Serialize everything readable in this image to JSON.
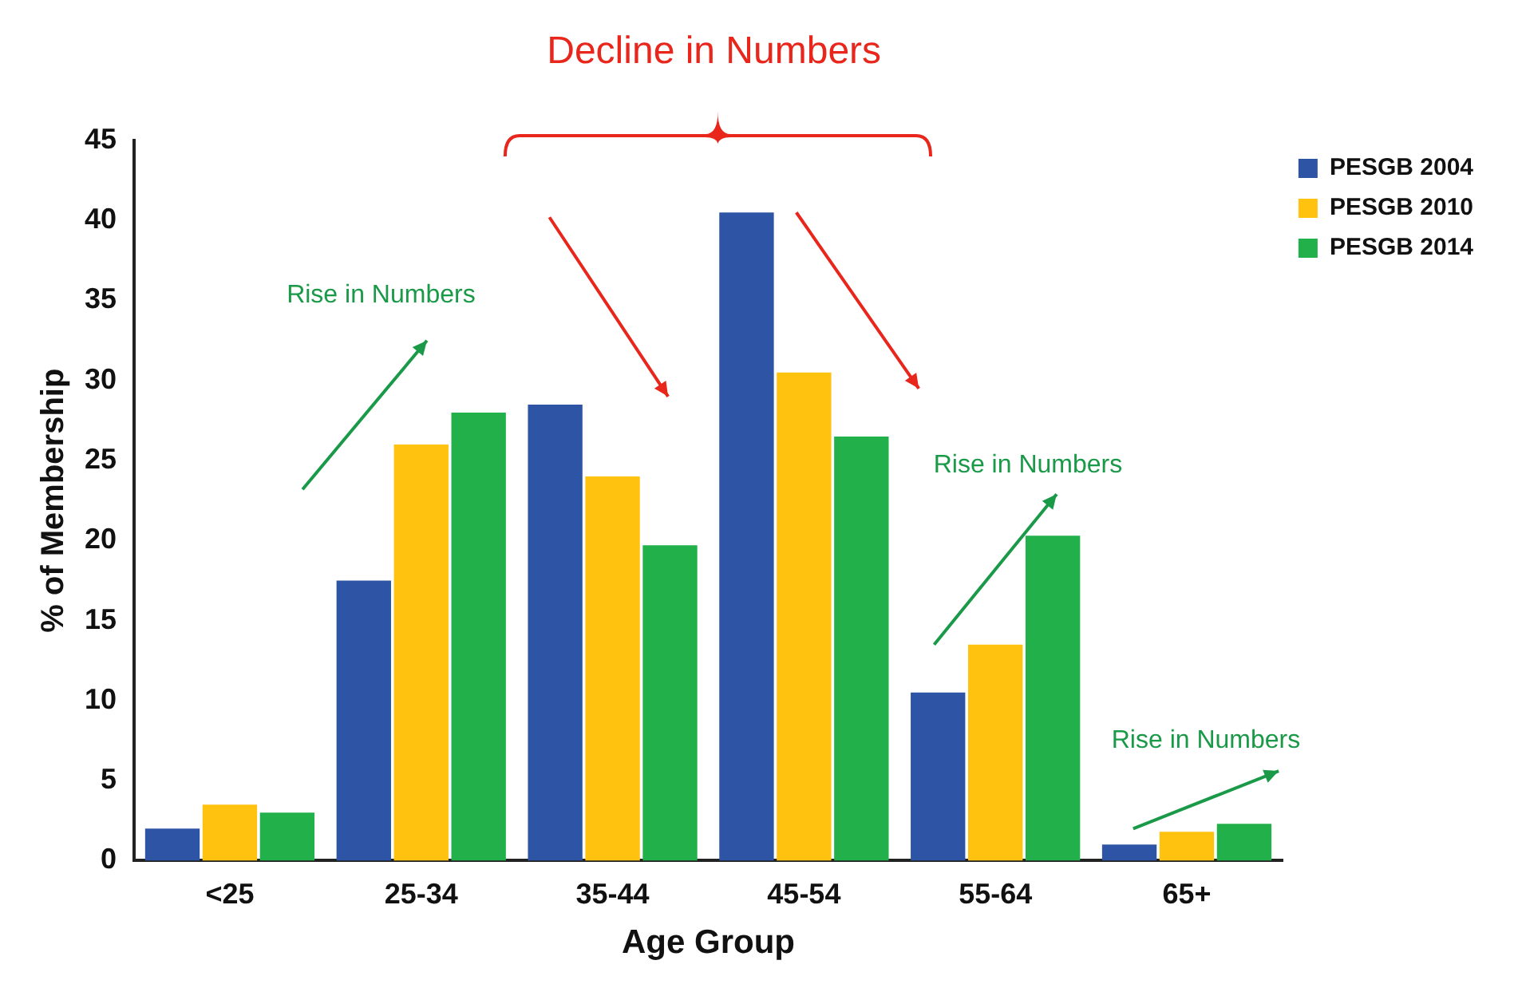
{
  "chart_data": {
    "type": "bar",
    "xlabel": "Age Group",
    "ylabel": "% of Membership",
    "categories": [
      "<25",
      "25-34",
      "35-44",
      "45-54",
      "55-64",
      "65+"
    ],
    "series": [
      {
        "name": "PESGB 2004",
        "color": "#2e55a5",
        "values": [
          2,
          17.5,
          28.5,
          40.5,
          10.5,
          1
        ]
      },
      {
        "name": "PESGB 2010",
        "color": "#ffc20e",
        "values": [
          3.5,
          26,
          24,
          30.5,
          13.5,
          1.8
        ]
      },
      {
        "name": "PESGB 2014",
        "color": "#22b04a",
        "values": [
          3,
          28,
          19.7,
          26.5,
          20.3,
          2.3
        ]
      }
    ],
    "ylim": [
      0,
      45
    ],
    "yticks": [
      0,
      5,
      10,
      15,
      20,
      25,
      30,
      35,
      40,
      45
    ],
    "grid": false,
    "legend": "top right",
    "annotations": [
      "Decline in Numbers",
      "Rise in Numbers",
      "Rise in Numbers",
      "Rise in Numbers"
    ]
  }
}
